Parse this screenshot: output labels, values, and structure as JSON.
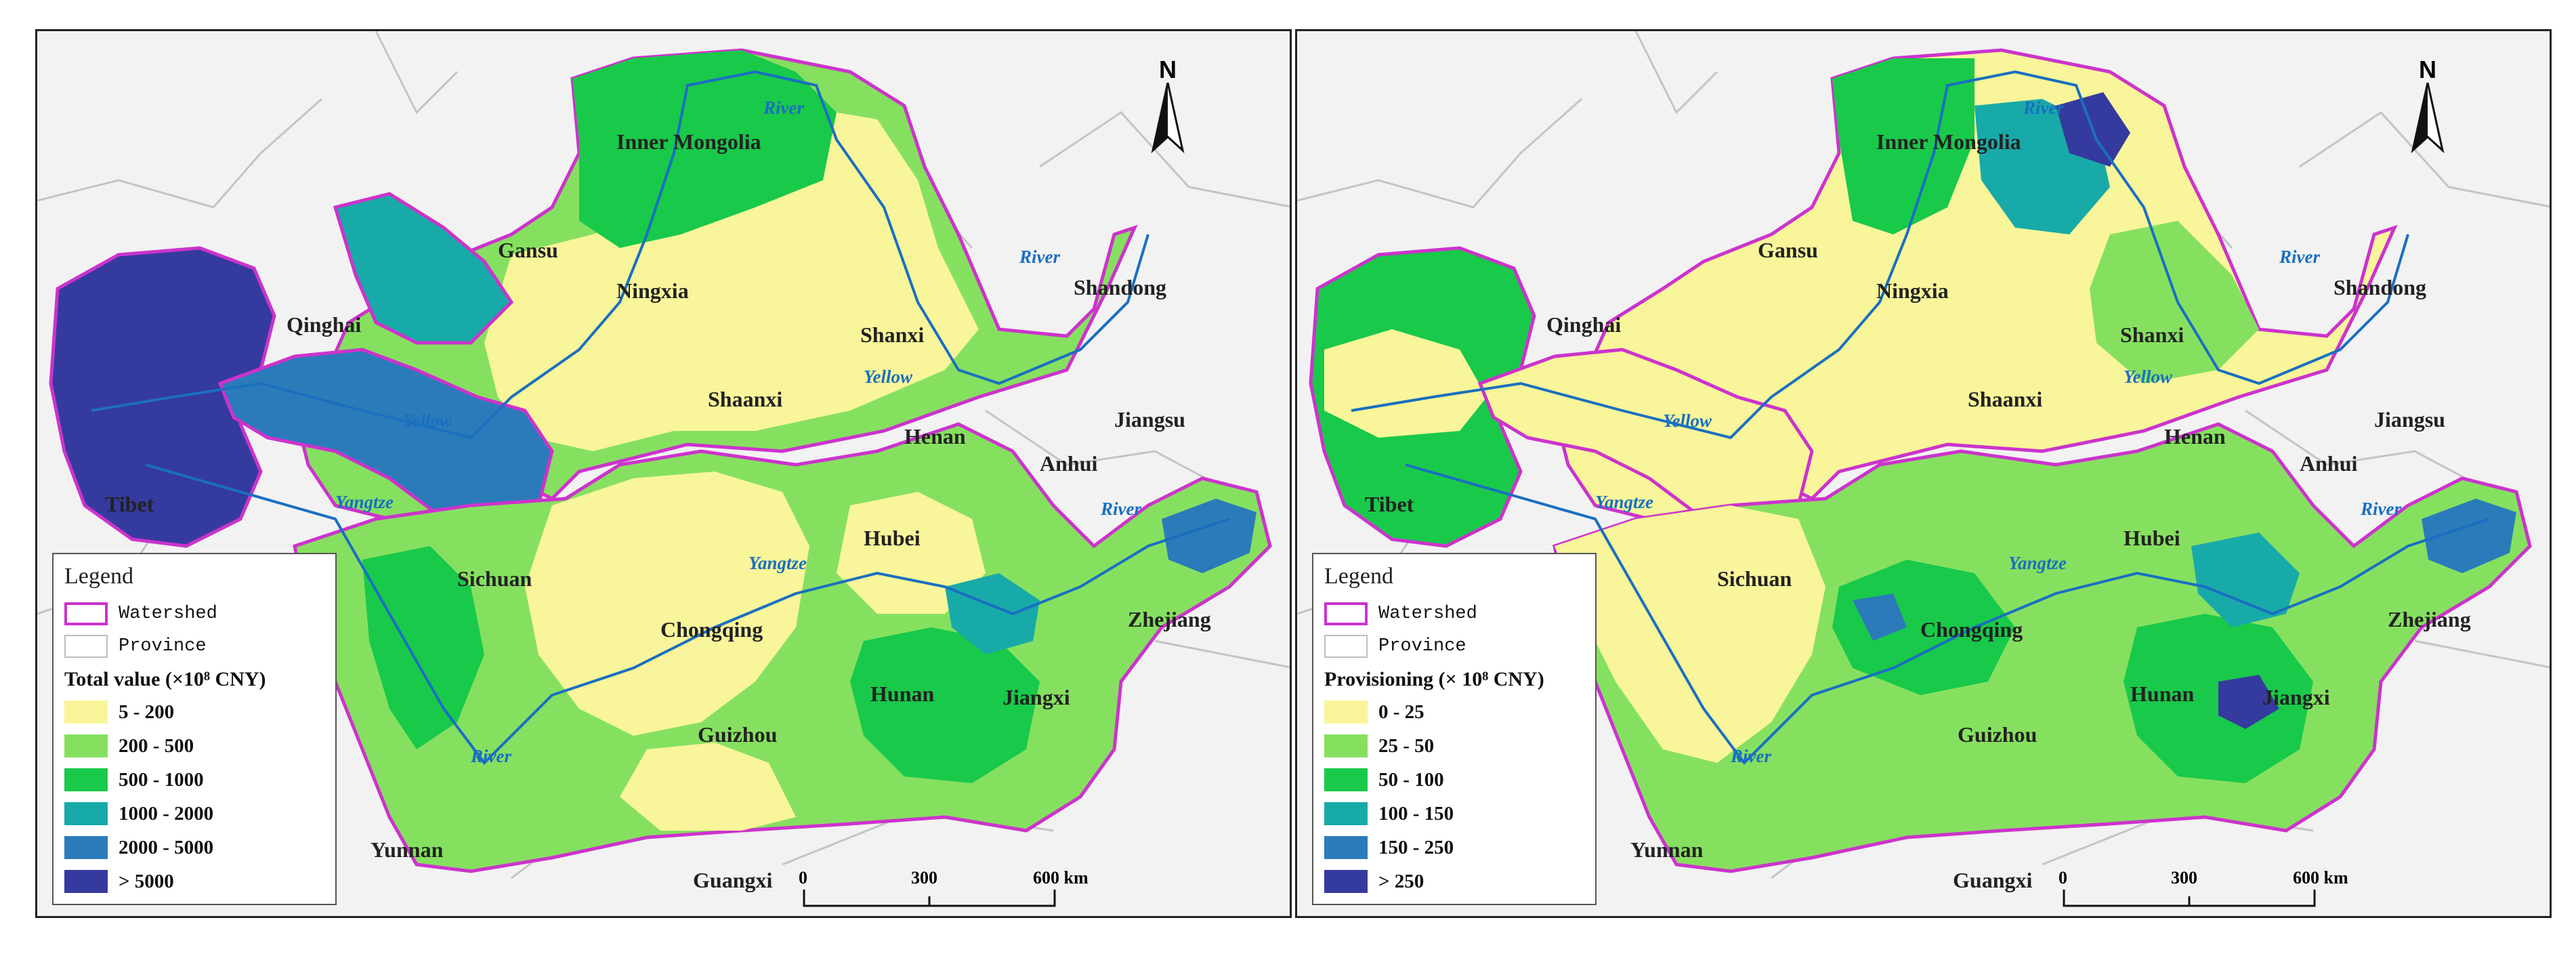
{
  "colors": {
    "watershed": "#cc33cc",
    "province_border": "#bdbdbd",
    "background": "#f2f2f2",
    "river": "#1a6fc0",
    "c1": "#f8f59a",
    "c2": "#86e060",
    "c3": "#19c94a",
    "c4": "#18aaa8",
    "c5": "#2b7bba",
    "c6": "#353a9e"
  },
  "north_arrow": "N",
  "scale": {
    "labels": [
      "0",
      "300",
      "600 km"
    ]
  },
  "legend_common": {
    "title": "Legend",
    "watershed": "Watershed",
    "province": "Province"
  },
  "panels": [
    {
      "id": "total",
      "field_title": "Total value (×10⁸ CNY)",
      "classes": [
        "5 - 200",
        "200 - 500",
        "500 - 1000",
        "1000 - 2000",
        "2000 - 5000",
        "> 5000"
      ]
    },
    {
      "id": "provisioning",
      "field_title": "Provisioning (× 10⁸ CNY)",
      "classes": [
        "0 - 25",
        "25 - 50",
        "50 - 100",
        "100 - 150",
        "150 - 250",
        "> 250"
      ]
    }
  ],
  "provinces": {
    "inner_mongolia": "Inner Mongolia",
    "gansu": "Gansu",
    "ningxia": "Ningxia",
    "qinghai": "Qinghai",
    "shanxi": "Shanxi",
    "shandong": "Shandong",
    "shaanxi": "Shaanxi",
    "henan": "Henan",
    "jiangsu": "Jiangsu",
    "anhui": "Anhui",
    "tibet": "Tibet",
    "hubei": "Hubei",
    "sichuan": "Sichuan",
    "chongqing": "Chongqing",
    "zhejiang": "Zhejiang",
    "hunan": "Hunan",
    "jiangxi": "Jiangxi",
    "guizhou": "Guizhou",
    "yunnan": "Yunnan",
    "guangxi": "Guangxi"
  },
  "rivers": {
    "river": "River",
    "yellow": "Yellow",
    "yangtze": "Yangtze"
  }
}
